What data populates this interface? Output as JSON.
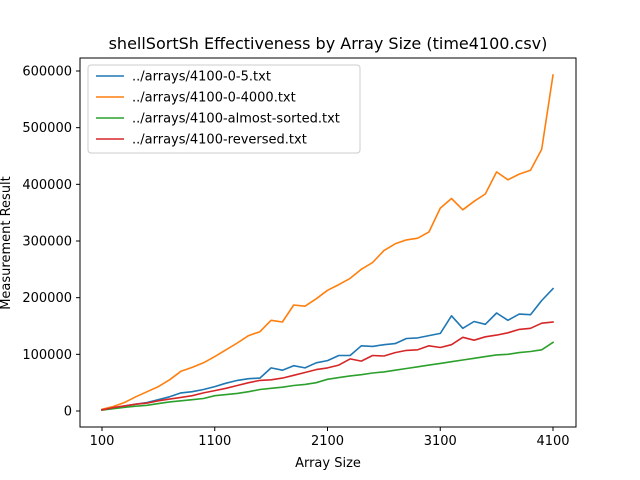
{
  "chart_data": {
    "type": "line",
    "title": "shellSortSh Effectiveness by Array Size (time4100.csv)",
    "xlabel": "Array Size",
    "ylabel": "Measurement Result",
    "xlim": [
      100,
      4100
    ],
    "ylim": [
      0,
      600000
    ],
    "xticks": [
      "100",
      "1100",
      "2100",
      "3100",
      "4100"
    ],
    "yticks": [
      "0",
      "100000",
      "200000",
      "300000",
      "400000",
      "500000",
      "600000"
    ],
    "legend_position": "top-left",
    "grid": false,
    "x": [
      100,
      200,
      300,
      400,
      500,
      600,
      700,
      800,
      900,
      1000,
      1100,
      1200,
      1300,
      1400,
      1500,
      1600,
      1700,
      1800,
      1900,
      2000,
      2100,
      2200,
      2300,
      2400,
      2500,
      2600,
      2700,
      2800,
      2900,
      3000,
      3100,
      3200,
      3300,
      3400,
      3500,
      3600,
      3700,
      3800,
      3900,
      4000,
      4100
    ],
    "series": [
      {
        "name": "../arrays/4100-0-5.txt",
        "color": "#1f77b4",
        "values": [
          2000,
          5000,
          9000,
          12000,
          15000,
          20000,
          25000,
          32000,
          34000,
          38000,
          43000,
          49000,
          54000,
          57000,
          58000,
          76000,
          72000,
          80000,
          76000,
          85000,
          89000,
          98000,
          98000,
          115000,
          114000,
          117000,
          119000,
          128000,
          129000,
          133000,
          137000,
          168000,
          146000,
          158000,
          153000,
          173000,
          160000,
          171000,
          170000,
          195000,
          216000
        ]
      },
      {
        "name": "../arrays/4100-0-4000.txt",
        "color": "#ff7f0e",
        "values": [
          3000,
          8000,
          15000,
          25000,
          34000,
          43000,
          55000,
          70000,
          77000,
          85000,
          96000,
          108000,
          120000,
          133000,
          140000,
          160000,
          157000,
          187000,
          185000,
          198000,
          213000,
          223000,
          234000,
          250000,
          262000,
          283000,
          295000,
          302000,
          305000,
          316000,
          358000,
          375000,
          355000,
          370000,
          383000,
          422000,
          408000,
          418000,
          425000,
          462000,
          593000
        ]
      },
      {
        "name": "../arrays/4100-almost-sorted.txt",
        "color": "#2ca02c",
        "values": [
          1500,
          4000,
          6500,
          8500,
          10000,
          13000,
          16000,
          18000,
          20000,
          22000,
          27000,
          29000,
          31000,
          34000,
          38000,
          40000,
          42000,
          45000,
          47000,
          50000,
          56000,
          59000,
          62000,
          64000,
          67000,
          69000,
          72000,
          75000,
          78000,
          81000,
          84000,
          87000,
          90000,
          93000,
          96000,
          99000,
          100000,
          103000,
          105000,
          108000,
          121000
        ]
      },
      {
        "name": "../arrays/4100-reversed.txt",
        "color": "#d62728",
        "values": [
          2000,
          6000,
          9000,
          12000,
          14000,
          18000,
          21000,
          24000,
          27000,
          32000,
          36000,
          40000,
          45000,
          50000,
          54000,
          55000,
          58000,
          63000,
          68000,
          73000,
          76000,
          81000,
          92000,
          88000,
          98000,
          97000,
          103000,
          107000,
          108000,
          115000,
          112000,
          117000,
          130000,
          125000,
          131000,
          134000,
          138000,
          144000,
          146000,
          155000,
          157000
        ]
      }
    ]
  }
}
